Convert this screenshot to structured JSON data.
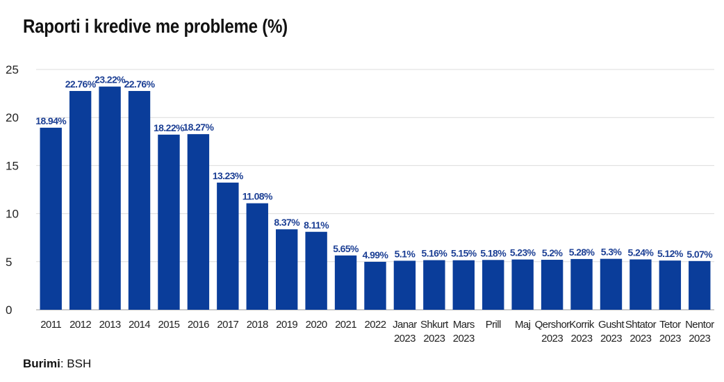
{
  "title": "Raporti i kredive me probleme (%)",
  "source": {
    "label": "Burimi",
    "separator": ": ",
    "value": "BSH"
  },
  "colors": {
    "bar": "#0a3d9a",
    "data_label": "#1c3f94",
    "grid": "#dcdcdc",
    "text": "#222222"
  },
  "chart_data": {
    "type": "bar",
    "title": "Raporti i kredive me probleme (%)",
    "xlabel": "",
    "ylabel": "",
    "ylim": [
      0,
      25
    ],
    "yticks": [
      0,
      5,
      10,
      15,
      20,
      25
    ],
    "grid": true,
    "legend": "none",
    "categories": [
      [
        "2011"
      ],
      [
        "2012"
      ],
      [
        "2013"
      ],
      [
        "2014"
      ],
      [
        "2015"
      ],
      [
        "2016"
      ],
      [
        "2017"
      ],
      [
        "2018"
      ],
      [
        "2019"
      ],
      [
        "2020"
      ],
      [
        "2021"
      ],
      [
        "2022"
      ],
      [
        "Janar",
        "2023"
      ],
      [
        "Shkurt",
        "2023"
      ],
      [
        "Mars",
        "2023"
      ],
      [
        "Prill"
      ],
      [
        "Maj"
      ],
      [
        "Qershor",
        "2023"
      ],
      [
        "Korrik",
        "2023"
      ],
      [
        "Gusht",
        "2023"
      ],
      [
        "Shtator",
        "2023"
      ],
      [
        "Tetor",
        "2023"
      ],
      [
        "Nentor",
        "2023"
      ]
    ],
    "values": [
      18.94,
      22.76,
      23.22,
      22.76,
      18.22,
      18.27,
      13.23,
      11.08,
      8.37,
      8.11,
      5.65,
      4.99,
      5.1,
      5.16,
      5.15,
      5.18,
      5.23,
      5.2,
      5.28,
      5.3,
      5.24,
      5.12,
      5.07
    ],
    "data_labels": [
      "18.94%",
      "22.76%",
      "23.22%",
      "22.76%",
      "18.22%",
      "18.27%",
      "13.23%",
      "11.08%",
      "8.37%",
      "8.11%",
      "5.65%",
      "4.99%",
      "5.1%",
      "5.16%",
      "5.15%",
      "5.18%",
      "5.23%",
      "5.2%",
      "5.28%",
      "5.3%",
      "5.24%",
      "5.12%",
      "5.07%"
    ]
  }
}
